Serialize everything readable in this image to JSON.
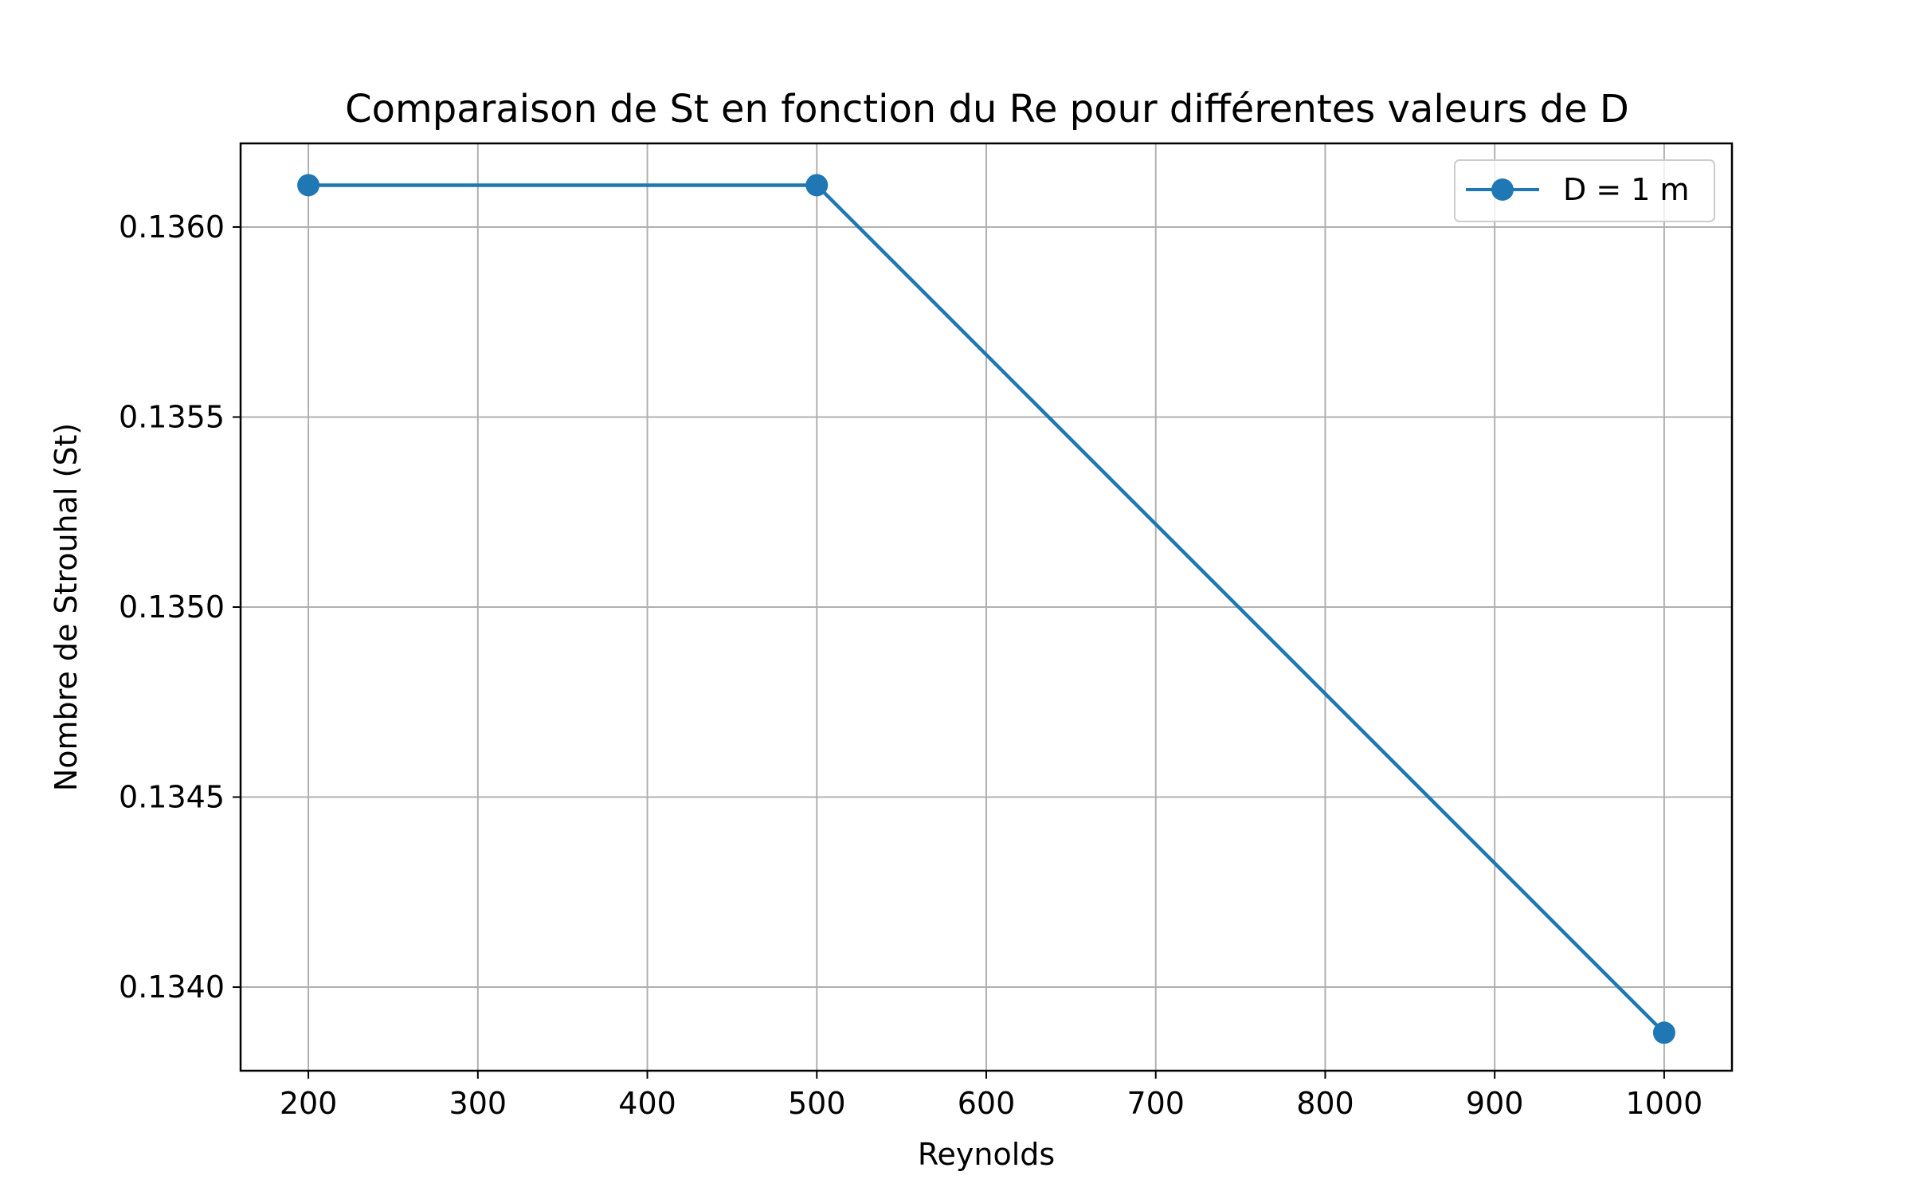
{
  "chart_data": {
    "type": "line",
    "title": "Comparaison de St en fonction du Re pour différentes valeurs de D",
    "xlabel": "Reynolds",
    "ylabel": "Nombre de Strouhal (St)",
    "xlim": [
      160,
      1040
    ],
    "ylim": [
      0.13378,
      0.13622
    ],
    "xticks": [
      200,
      300,
      400,
      500,
      600,
      700,
      800,
      900,
      1000
    ],
    "xtick_labels": [
      "200",
      "300",
      "400",
      "500",
      "600",
      "700",
      "800",
      "900",
      "1000"
    ],
    "yticks": [
      0.134,
      0.1345,
      0.135,
      0.1355,
      0.136
    ],
    "ytick_labels": [
      "0.1340",
      "0.1345",
      "0.1350",
      "0.1355",
      "0.1360"
    ],
    "grid": true,
    "legend_position": "top-right",
    "series": [
      {
        "name": "D = 1 m",
        "color": "#1f77b4",
        "marker": "circle",
        "x": [
          200,
          500,
          1000
        ],
        "y": [
          0.13611,
          0.13611,
          0.13388
        ]
      }
    ]
  }
}
